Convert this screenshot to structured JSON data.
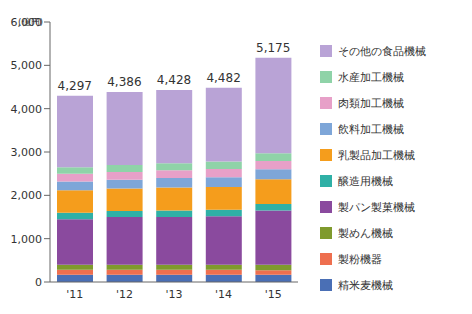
{
  "chart_data": {
    "type": "bar",
    "stacked": true,
    "grid": false,
    "legend": "right",
    "y_label": "(億円)",
    "categories": [
      "'11",
      "'12",
      "'13",
      "'14",
      "'15"
    ],
    "ylim": [
      0,
      6000
    ],
    "yticks": [
      0,
      {
        "value": 1000,
        "label": "1,000"
      },
      {
        "value": 2000,
        "label": "2,000"
      },
      {
        "value": 3000,
        "label": "3,000"
      },
      {
        "value": 4000,
        "label": "4,000"
      },
      {
        "value": 5000,
        "label": "5,000"
      },
      {
        "value": 6000,
        "label": "6,000"
      }
    ],
    "totals": [
      {
        "value": 4297,
        "label": "4,297"
      },
      {
        "value": 4386,
        "label": "4,386"
      },
      {
        "value": 4428,
        "label": "4,428"
      },
      {
        "value": 4482,
        "label": "4,482"
      },
      {
        "value": 5175,
        "label": "5,175"
      }
    ],
    "series": [
      {
        "name": "精米麦機械",
        "color": "#4a6fb5",
        "values": [
          170,
          170,
          170,
          170,
          170
        ]
      },
      {
        "name": "製粉機器",
        "color": "#ee6f4f",
        "values": [
          110,
          110,
          110,
          110,
          100
        ]
      },
      {
        "name": "製めん機械",
        "color": "#7f9a2d",
        "values": [
          120,
          120,
          120,
          120,
          130
        ]
      },
      {
        "name": "製パン製菓機械",
        "color": "#8a4a9e",
        "values": [
          1050,
          1100,
          1100,
          1120,
          1250
        ]
      },
      {
        "name": "醸造用機械",
        "color": "#2fb0a6",
        "values": [
          150,
          140,
          150,
          150,
          150
        ]
      },
      {
        "name": "乳製品加工機械",
        "color": "#f59d1c",
        "values": [
          520,
          520,
          530,
          520,
          570
        ]
      },
      {
        "name": "飲料加工機械",
        "color": "#7ea6d8",
        "values": [
          200,
          200,
          220,
          230,
          230
        ]
      },
      {
        "name": "肉類加工機械",
        "color": "#e7a0c8",
        "values": [
          180,
          180,
          180,
          190,
          190
        ]
      },
      {
        "name": "水産加工機械",
        "color": "#8fd3a8",
        "values": [
          150,
          160,
          160,
          170,
          180
        ]
      },
      {
        "name": "その他の食品機械",
        "color": "#b9a3d6",
        "values": [
          1647,
          1686,
          1688,
          1702,
          2205
        ]
      }
    ]
  }
}
